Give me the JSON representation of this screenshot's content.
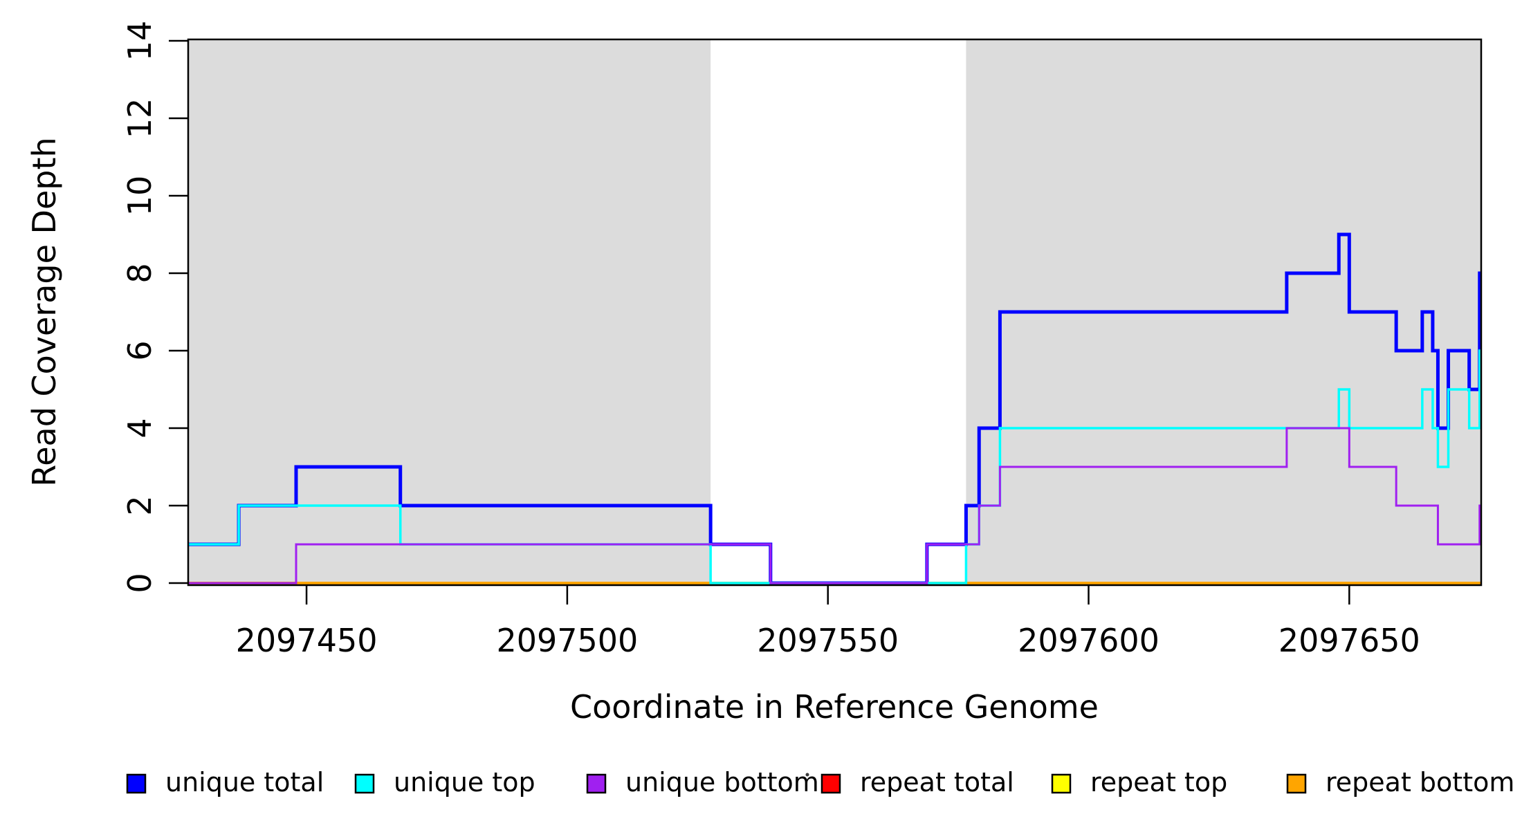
{
  "chart_data": {
    "type": "line",
    "subtype": "step-coverage-plot",
    "xlabel": "Coordinate in Reference Genome",
    "ylabel": "Read Coverage Depth",
    "xlim": [
      2097427.3,
      2097675.3
    ],
    "ylim": [
      0,
      14
    ],
    "x_ticks": [
      2097450,
      2097500,
      2097550,
      2097600,
      2097650
    ],
    "y_ticks": [
      0,
      2,
      4,
      6,
      8,
      10,
      12,
      14
    ],
    "grid": false,
    "background_color": "#ffffff",
    "shaded_regions": {
      "color": "#DCDCDC",
      "regions": [
        [
          2097427.3,
          2097527.5
        ],
        [
          2097576.5,
          2097675.3
        ]
      ]
    },
    "series": [
      {
        "name": "unique total",
        "color": "#0000FF",
        "steps": [
          [
            2097427.3,
            1
          ],
          [
            2097437,
            2
          ],
          [
            2097448,
            3
          ],
          [
            2097468,
            2
          ],
          [
            2097527.5,
            1
          ],
          [
            2097539,
            0
          ],
          [
            2097569,
            1
          ],
          [
            2097576.5,
            2
          ],
          [
            2097579,
            4
          ],
          [
            2097583,
            7
          ],
          [
            2097638,
            8
          ],
          [
            2097648,
            9
          ],
          [
            2097650,
            7
          ],
          [
            2097659,
            6
          ],
          [
            2097664,
            7
          ],
          [
            2097666,
            6
          ],
          [
            2097667,
            4
          ],
          [
            2097669,
            6
          ],
          [
            2097673,
            5
          ],
          [
            2097675,
            8
          ]
        ]
      },
      {
        "name": "unique top",
        "color": "#00FFFF",
        "steps": [
          [
            2097427.3,
            1
          ],
          [
            2097437,
            2
          ],
          [
            2097468,
            1
          ],
          [
            2097527.5,
            0
          ],
          [
            2097576.5,
            1
          ],
          [
            2097579,
            2
          ],
          [
            2097583,
            4
          ],
          [
            2097648,
            5
          ],
          [
            2097650,
            4
          ],
          [
            2097664,
            5
          ],
          [
            2097666,
            4
          ],
          [
            2097667,
            3
          ],
          [
            2097669,
            5
          ],
          [
            2097673,
            4
          ],
          [
            2097675,
            6
          ]
        ]
      },
      {
        "name": "unique bottom",
        "color": "#A020F0",
        "steps": [
          [
            2097427.3,
            0
          ],
          [
            2097448,
            1
          ],
          [
            2097539,
            0
          ],
          [
            2097569,
            1
          ],
          [
            2097579,
            2
          ],
          [
            2097583,
            3
          ],
          [
            2097638,
            4
          ],
          [
            2097650,
            3
          ],
          [
            2097659,
            2
          ],
          [
            2097667,
            1
          ],
          [
            2097675,
            2
          ]
        ]
      },
      {
        "name": "repeat total",
        "color": "#FF0000",
        "steps": [
          [
            2097427.3,
            0
          ]
        ]
      },
      {
        "name": "repeat top",
        "color": "#FFFF00",
        "steps": [
          [
            2097427.3,
            0
          ]
        ]
      },
      {
        "name": "repeat bottom",
        "color": "#FFA500",
        "steps": [
          [
            2097427.3,
            0
          ]
        ]
      }
    ],
    "legend": {
      "position": "bottom",
      "items": [
        {
          "label": "unique total",
          "color": "#0000FF"
        },
        {
          "label": "unique top",
          "color": "#00FFFF"
        },
        {
          "label": "unique bottom",
          "color": "#A020F0"
        },
        {
          "label": "repeat total",
          "color": "#FF0000"
        },
        {
          "label": "repeat top",
          "color": "#FFFF00"
        },
        {
          "label": "repeat bottom",
          "color": "#FFA500"
        }
      ]
    }
  },
  "labels": {
    "x_axis_title": "Coordinate in Reference Genome",
    "y_axis_title": "Read Coverage Depth"
  }
}
